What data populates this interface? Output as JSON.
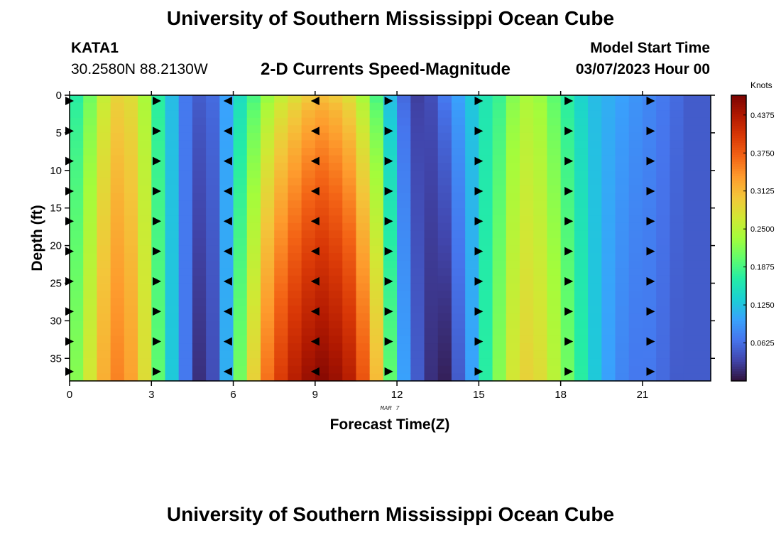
{
  "header": {
    "title": "University of Southern Mississippi Ocean Cube",
    "station": "KATA1",
    "coords": "30.2580N  88.2130W",
    "plot_title": "2-D Currents Speed-Magnitude",
    "start_label": "Model Start Time",
    "start_value": "03/07/2023 Hour 00"
  },
  "footer": {
    "title": "University of Southern Mississippi Ocean Cube"
  },
  "chart_data": {
    "type": "heatmap",
    "title": "2-D Currents Speed-Magnitude",
    "xlabel": "Forecast Time(Z)",
    "ylabel": "Depth (ft)",
    "date_label": "MAR 7",
    "xlim": [
      0,
      23.5
    ],
    "ylim": [
      0,
      38
    ],
    "y_inverted": true,
    "x_ticks": [
      0,
      3,
      6,
      9,
      12,
      15,
      18,
      21
    ],
    "x_tick_labels": [
      "0",
      "3",
      "6",
      "9",
      "12",
      "15",
      "18",
      "21"
    ],
    "y_ticks": [
      0,
      5,
      10,
      15,
      20,
      25,
      30,
      35
    ],
    "y_tick_labels": [
      "0",
      "5",
      "10",
      "15",
      "20",
      "25",
      "30",
      "35"
    ],
    "colorbar": {
      "label": "Knots",
      "min": 0,
      "max": 0.47,
      "ticks": [
        0.0625,
        0.125,
        0.1875,
        0.25,
        0.3125,
        0.375,
        0.4375
      ],
      "tick_labels": [
        "0.0625",
        "0.1250",
        "0.1875",
        "0.2500",
        "0.3125",
        "0.3750",
        "0.4375"
      ],
      "stops": [
        "#30123b",
        "#4145ab",
        "#4675ed",
        "#39a2fc",
        "#1bcfd4",
        "#24eca6",
        "#61fc6c",
        "#a4fc3b",
        "#d1e834",
        "#f3c63a",
        "#fe9b2d",
        "#f36315",
        "#d93806",
        "#b11901",
        "#7a0403"
      ]
    },
    "time_hours": [
      0.0,
      0.5,
      1.0,
      1.5,
      2.0,
      2.5,
      3.0,
      3.5,
      4.0,
      4.5,
      5.0,
      5.5,
      6.0,
      6.5,
      7.0,
      7.5,
      8.0,
      8.5,
      9.0,
      9.5,
      10.0,
      10.5,
      11.0,
      11.5,
      12.0,
      12.5,
      13.0,
      13.5,
      14.0,
      14.5,
      15.0,
      15.5,
      16.0,
      16.5,
      17.0,
      17.5,
      18.0,
      18.5,
      19.0,
      19.5,
      20.0,
      20.5,
      21.0,
      21.5,
      22.0,
      22.5,
      23.0,
      23.5
    ],
    "surface_speed_knots": [
      0.17,
      0.21,
      0.26,
      0.29,
      0.28,
      0.24,
      0.17,
      0.12,
      0.07,
      0.05,
      0.06,
      0.1,
      0.15,
      0.19,
      0.23,
      0.26,
      0.28,
      0.3,
      0.31,
      0.3,
      0.28,
      0.24,
      0.19,
      0.12,
      0.06,
      0.03,
      0.04,
      0.07,
      0.1,
      0.13,
      0.16,
      0.18,
      0.22,
      0.24,
      0.23,
      0.2,
      0.17,
      0.14,
      0.12,
      0.11,
      0.1,
      0.09,
      0.08,
      0.07,
      0.06,
      0.05,
      0.05,
      0.06
    ],
    "bottom_speed_knots": [
      0.22,
      0.27,
      0.32,
      0.35,
      0.33,
      0.28,
      0.2,
      0.13,
      0.07,
      0.02,
      0.04,
      0.11,
      0.21,
      0.29,
      0.36,
      0.4,
      0.43,
      0.45,
      0.46,
      0.45,
      0.43,
      0.38,
      0.31,
      0.2,
      0.1,
      0.05,
      0.02,
      0.01,
      0.05,
      0.1,
      0.17,
      0.22,
      0.27,
      0.29,
      0.28,
      0.25,
      0.21,
      0.17,
      0.13,
      0.1,
      0.08,
      0.07,
      0.07,
      0.06,
      0.05,
      0.05,
      0.05,
      0.06
    ],
    "vector_times": [
      0,
      3.2,
      5.8,
      9.0,
      11.7,
      15.0,
      18.3,
      21.3
    ],
    "vector_directions": [
      "east",
      "east",
      "west",
      "west",
      "east",
      "east",
      "east",
      "east"
    ],
    "vector_depths": [
      0,
      4,
      8,
      12,
      16,
      20,
      24,
      28,
      32,
      36
    ]
  }
}
